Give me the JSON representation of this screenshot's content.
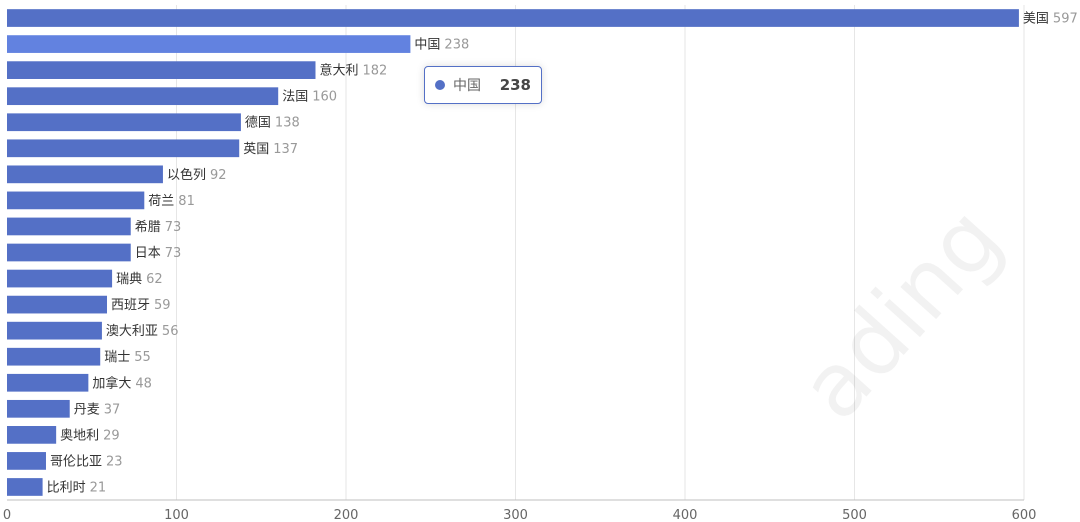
{
  "chart_data": {
    "type": "bar",
    "orientation": "horizontal",
    "categories": [
      "美国",
      "中国",
      "意大利",
      "法国",
      "德国",
      "英国",
      "以色列",
      "荷兰",
      "希腊",
      "日本",
      "瑞典",
      "西班牙",
      "澳大利亚",
      "瑞士",
      "加拿大",
      "丹麦",
      "奥地利",
      "哥伦比亚",
      "比利时"
    ],
    "values": [
      597,
      238,
      182,
      160,
      138,
      137,
      92,
      81,
      73,
      73,
      62,
      59,
      56,
      55,
      48,
      37,
      29,
      23,
      21
    ],
    "xlim": [
      0,
      600
    ],
    "xticks": [
      "0",
      "100",
      "200",
      "300",
      "400",
      "500",
      "600"
    ],
    "grid": "vertical",
    "bar_color": "#5470c6",
    "highlight_color": "#6282e0",
    "highlight_index": 1
  },
  "tooltip": {
    "label": "中国",
    "value": "238"
  },
  "watermark": "ading"
}
